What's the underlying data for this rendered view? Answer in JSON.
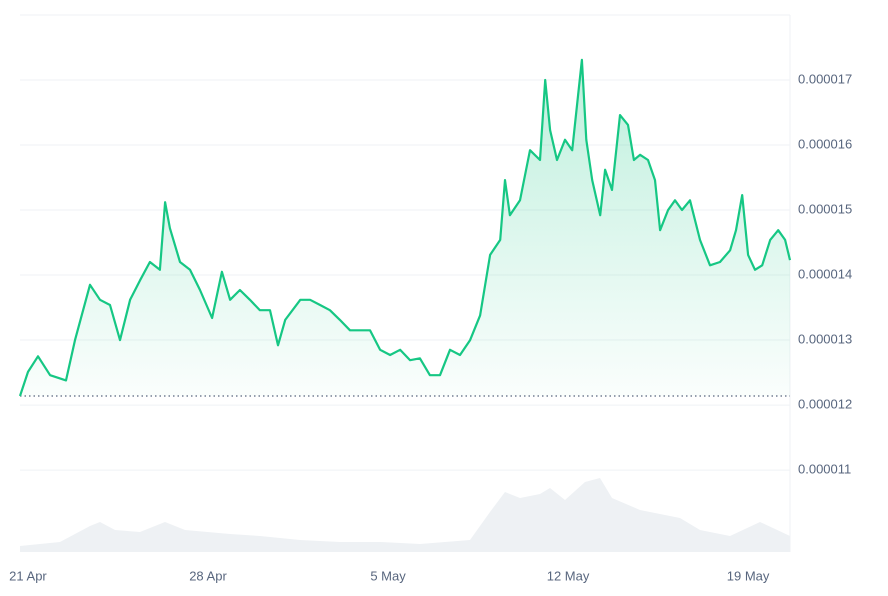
{
  "chart_data": {
    "type": "line",
    "color": "#16c784",
    "grid": true,
    "xlim": [
      -0.31,
      29.63
    ],
    "ylim": [
      9.74e-06,
      1.8e-05
    ],
    "xticks": [
      {
        "value": 0,
        "label": "21 Apr"
      },
      {
        "value": 7,
        "label": "28 Apr"
      },
      {
        "value": 14,
        "label": "5 May"
      },
      {
        "value": 21,
        "label": "12 May"
      },
      {
        "value": 28,
        "label": "19 May"
      }
    ],
    "yticks": [
      1.1e-05,
      1.2e-05,
      1.3e-05,
      1.4e-05,
      1.5e-05,
      1.6e-05,
      1.7e-05
    ],
    "x": [
      -0.31,
      0,
      0.39,
      0.86,
      1.17,
      1.48,
      1.83,
      2.41,
      2.8,
      3.19,
      3.58,
      3.97,
      4.36,
      4.74,
      5.13,
      5.33,
      5.52,
      5.91,
      6.3,
      6.69,
      7.16,
      7.54,
      7.86,
      8.24,
      8.63,
      9.02,
      9.41,
      9.72,
      10.0,
      10.59,
      10.97,
      11.36,
      11.74,
      12.13,
      12.52,
      12.91,
      13.3,
      13.69,
      14.08,
      14.47,
      14.86,
      15.24,
      15.63,
      16.02,
      16.41,
      16.8,
      17.19,
      17.58,
      17.97,
      18.36,
      18.55,
      18.74,
      19.13,
      19.52,
      19.91,
      20.11,
      20.3,
      20.57,
      20.88,
      21.16,
      21.39,
      21.54,
      21.71,
      21.94,
      22.25,
      22.44,
      22.71,
      23.02,
      23.33,
      23.56,
      23.8,
      24.11,
      24.38,
      24.58,
      24.89,
      25.16,
      25.43,
      25.74,
      26.13,
      26.52,
      26.91,
      27.3,
      27.53,
      27.77,
      28.0,
      28.27,
      28.55,
      28.86,
      29.17,
      29.44,
      29.63
    ],
    "values": [
      1.214e-05,
      1.251e-05,
      1.275e-05,
      1.246e-05,
      1.242e-05,
      1.238e-05,
      1.3e-05,
      1.385e-05,
      1.362e-05,
      1.354e-05,
      1.3e-05,
      1.362e-05,
      1.392e-05,
      1.42e-05,
      1.408e-05,
      1.512e-05,
      1.472e-05,
      1.42e-05,
      1.408e-05,
      1.377e-05,
      1.334e-05,
      1.405e-05,
      1.362e-05,
      1.377e-05,
      1.362e-05,
      1.346e-05,
      1.346e-05,
      1.292e-05,
      1.331e-05,
      1.362e-05,
      1.362e-05,
      1.354e-05,
      1.346e-05,
      1.331e-05,
      1.315e-05,
      1.315e-05,
      1.315e-05,
      1.285e-05,
      1.277e-05,
      1.285e-05,
      1.269e-05,
      1.272e-05,
      1.246e-05,
      1.246e-05,
      1.285e-05,
      1.277e-05,
      1.3e-05,
      1.338e-05,
      1.431e-05,
      1.454e-05,
      1.546e-05,
      1.492e-05,
      1.515e-05,
      1.592e-05,
      1.577e-05,
      1.7e-05,
      1.623e-05,
      1.577e-05,
      1.608e-05,
      1.592e-05,
      1.677e-05,
      1.731e-05,
      1.608e-05,
      1.546e-05,
      1.492e-05,
      1.562e-05,
      1.531e-05,
      1.646e-05,
      1.631e-05,
      1.577e-05,
      1.585e-05,
      1.577e-05,
      1.546e-05,
      1.469e-05,
      1.5e-05,
      1.515e-05,
      1.5e-05,
      1.515e-05,
      1.454e-05,
      1.415e-05,
      1.42e-05,
      1.438e-05,
      1.469e-05,
      1.523e-05,
      1.431e-05,
      1.408e-05,
      1.415e-05,
      1.454e-05,
      1.469e-05,
      1.454e-05,
      1.423e-05
    ]
  }
}
